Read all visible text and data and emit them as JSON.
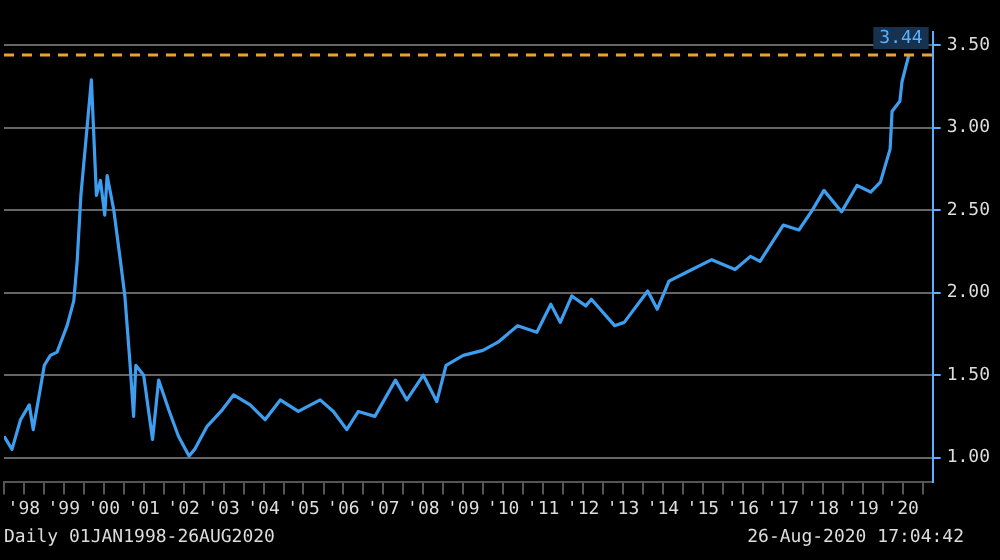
{
  "chart_data": {
    "type": "line",
    "x": [
      "1998-01-02",
      "1998-03-15",
      "1998-06-01",
      "1998-08-20",
      "1998-09-25",
      "1999-01-05",
      "1999-03-01",
      "1999-05-01",
      "1999-08-01",
      "1999-10-01",
      "1999-11-01",
      "1999-12-05",
      "2000-03-10",
      "2000-04-25",
      "2000-06-01",
      "2000-07-10",
      "2000-08-01",
      "2000-10-01",
      "2000-12-01",
      "2001-01-10",
      "2001-02-25",
      "2001-03-31",
      "2001-04-20",
      "2001-07-01",
      "2001-09-20",
      "2001-11-15",
      "2002-02-15",
      "2002-05-15",
      "2002-08-20",
      "2002-10-10",
      "2003-02-01",
      "2003-06-20",
      "2003-10-01",
      "2004-03-01",
      "2004-07-15",
      "2004-12-01",
      "2005-05-15",
      "2005-12-01",
      "2006-04-01",
      "2006-08-01",
      "2006-11-15",
      "2007-04-15",
      "2007-10-20",
      "2008-02-01",
      "2008-07-01",
      "2008-11-01",
      "2009-01-25",
      "2009-07-01",
      "2009-12-28",
      "2010-05-15",
      "2010-11-10",
      "2011-05-05",
      "2011-09-10",
      "2011-12-05",
      "2012-03-20",
      "2012-07-25",
      "2012-09-15",
      "2013-04-15",
      "2013-07-12",
      "2014-02-12",
      "2014-05-10",
      "2014-08-25",
      "2015-02-20",
      "2015-09-20",
      "2016-04-20",
      "2016-09-08",
      "2016-12-05",
      "2017-07-05",
      "2017-11-25",
      "2018-03-28",
      "2018-07-12",
      "2018-12-20",
      "2019-05-10",
      "2019-09-12",
      "2019-12-10",
      "2020-03-08",
      "2020-03-26",
      "2020-06-05",
      "2020-06-25",
      "2020-08-26"
    ],
    "series": [
      {
        "color": "#3d9ef0",
        "values": [
          1.13,
          1.05,
          1.23,
          1.32,
          1.17,
          1.56,
          1.62,
          1.64,
          1.8,
          1.95,
          2.19,
          2.59,
          3.29,
          2.59,
          2.68,
          2.47,
          2.71,
          2.5,
          2.19,
          1.98,
          1.58,
          1.25,
          1.56,
          1.5,
          1.11,
          1.47,
          1.29,
          1.13,
          1.01,
          1.05,
          1.19,
          1.29,
          1.38,
          1.32,
          1.23,
          1.35,
          1.28,
          1.35,
          1.28,
          1.17,
          1.28,
          1.25,
          1.47,
          1.35,
          1.5,
          1.34,
          1.56,
          1.62,
          1.65,
          1.7,
          1.8,
          1.76,
          1.93,
          1.82,
          1.98,
          1.92,
          1.96,
          1.8,
          1.82,
          2.01,
          1.9,
          2.07,
          2.13,
          2.2,
          2.14,
          2.22,
          2.19,
          2.41,
          2.38,
          2.5,
          2.62,
          2.49,
          2.65,
          2.61,
          2.67,
          2.87,
          3.1,
          3.16,
          3.28,
          3.44
        ]
      }
    ],
    "xlim": [
      "1998-01-01",
      "2021-04-01"
    ],
    "xticks": [
      {
        "value": "1998-01-01",
        "label": null
      },
      {
        "value": "1998-07-01",
        "label": "'98"
      },
      {
        "value": "1999-01-01",
        "label": null
      },
      {
        "value": "1999-07-01",
        "label": "'99"
      },
      {
        "value": "2000-01-01",
        "label": null
      },
      {
        "value": "2000-07-01",
        "label": "'00"
      },
      {
        "value": "2001-01-01",
        "label": null
      },
      {
        "value": "2001-07-01",
        "label": "'01"
      },
      {
        "value": "2002-01-01",
        "label": null
      },
      {
        "value": "2002-07-01",
        "label": "'02"
      },
      {
        "value": "2003-01-01",
        "label": null
      },
      {
        "value": "2003-07-01",
        "label": "'03"
      },
      {
        "value": "2004-01-01",
        "label": null
      },
      {
        "value": "2004-07-01",
        "label": "'04"
      },
      {
        "value": "2005-01-01",
        "label": null
      },
      {
        "value": "2005-07-01",
        "label": "'05"
      },
      {
        "value": "2006-01-01",
        "label": null
      },
      {
        "value": "2006-07-01",
        "label": "'06"
      },
      {
        "value": "2007-01-01",
        "label": null
      },
      {
        "value": "2007-07-01",
        "label": "'07"
      },
      {
        "value": "2008-01-01",
        "label": null
      },
      {
        "value": "2008-07-01",
        "label": "'08"
      },
      {
        "value": "2009-01-01",
        "label": null
      },
      {
        "value": "2009-07-01",
        "label": "'09"
      },
      {
        "value": "2010-01-01",
        "label": null
      },
      {
        "value": "2010-07-01",
        "label": "'10"
      },
      {
        "value": "2011-01-01",
        "label": null
      },
      {
        "value": "2011-07-01",
        "label": "'11"
      },
      {
        "value": "2012-01-01",
        "label": null
      },
      {
        "value": "2012-07-01",
        "label": "'12"
      },
      {
        "value": "2013-01-01",
        "label": null
      },
      {
        "value": "2013-07-01",
        "label": "'13"
      },
      {
        "value": "2014-01-01",
        "label": null
      },
      {
        "value": "2014-07-01",
        "label": "'14"
      },
      {
        "value": "2015-01-01",
        "label": null
      },
      {
        "value": "2015-07-01",
        "label": "'15"
      },
      {
        "value": "2016-01-01",
        "label": null
      },
      {
        "value": "2016-07-01",
        "label": "'16"
      },
      {
        "value": "2017-01-01",
        "label": null
      },
      {
        "value": "2017-07-01",
        "label": "'17"
      },
      {
        "value": "2018-01-01",
        "label": null
      },
      {
        "value": "2018-07-01",
        "label": "'18"
      },
      {
        "value": "2019-01-01",
        "label": null
      },
      {
        "value": "2019-07-01",
        "label": "'19"
      },
      {
        "value": "2020-01-01",
        "label": null
      },
      {
        "value": "2020-07-01",
        "label": "'20"
      },
      {
        "value": "2021-01-01",
        "label": null
      }
    ],
    "ylim": [
      0.85,
      3.58
    ],
    "yticks": [
      {
        "value": 1,
        "label": "1.00"
      },
      {
        "value": 1.5,
        "label": "1.50"
      },
      {
        "value": 2,
        "label": "2.00"
      },
      {
        "value": 2.5,
        "label": "2.50"
      },
      {
        "value": 3,
        "label": "3.00"
      },
      {
        "value": 3.5,
        "label": "3.50"
      }
    ],
    "grid": "y",
    "ref_lines": [
      {
        "axis": "y",
        "value": 3.44,
        "label": "3.44",
        "color": "#f0a030",
        "line_style": "dashed"
      }
    ],
    "annotations": [
      "Daily 01JAN1998-26AUG2020",
      "26-Aug-2020 17:04:42"
    ]
  }
}
